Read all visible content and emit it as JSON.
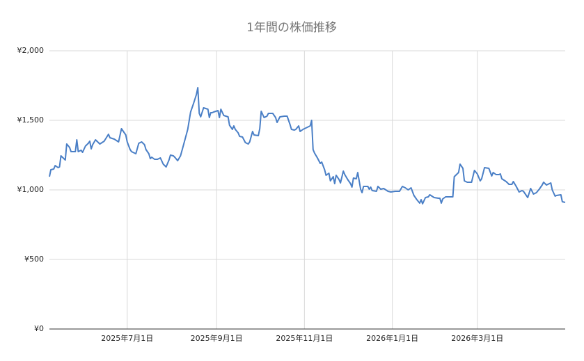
{
  "chart_data": {
    "type": "line",
    "title": "1年間の株価推移",
    "x": [
      "2025-05-08",
      "2025-05-09",
      "2025-05-11",
      "2025-05-12",
      "2025-05-14",
      "2025-05-15",
      "2025-05-16",
      "2025-05-19",
      "2025-05-20",
      "2025-05-22",
      "2025-05-23",
      "2025-05-26",
      "2025-05-27",
      "2025-05-28",
      "2025-05-30",
      "2025-05-31",
      "2025-06-02",
      "2025-06-04",
      "2025-06-05",
      "2025-06-06",
      "2025-06-07",
      "2025-06-09",
      "2025-06-11",
      "2025-06-12",
      "2025-06-15",
      "2025-06-18",
      "2025-06-19",
      "2025-06-22",
      "2025-06-25",
      "2025-06-27",
      "2025-06-30",
      "2025-07-01",
      "2025-07-03",
      "2025-07-04",
      "2025-07-07",
      "2025-07-09",
      "2025-07-11",
      "2025-07-13",
      "2025-07-14",
      "2025-07-16",
      "2025-07-17",
      "2025-07-18",
      "2025-07-20",
      "2025-07-22",
      "2025-07-24",
      "2025-07-26",
      "2025-07-28",
      "2025-07-30",
      "2025-07-31",
      "2025-08-02",
      "2025-08-03",
      "2025-08-05",
      "2025-08-07",
      "2025-08-09",
      "2025-08-12",
      "2025-08-14",
      "2025-08-16",
      "2025-08-18",
      "2025-08-19",
      "2025-08-20",
      "2025-08-21",
      "2025-08-23",
      "2025-08-26",
      "2025-08-27",
      "2025-08-28",
      "2025-08-29",
      "2025-08-30",
      "2025-09-02",
      "2025-09-03",
      "2025-09-04",
      "2025-09-06",
      "2025-09-09",
      "2025-09-10",
      "2025-09-12",
      "2025-09-13",
      "2025-09-14",
      "2025-09-16",
      "2025-09-17",
      "2025-09-19",
      "2025-09-21",
      "2025-09-23",
      "2025-09-24",
      "2025-09-26",
      "2025-09-27",
      "2025-09-30",
      "2025-10-01",
      "2025-10-02",
      "2025-10-04",
      "2025-10-06",
      "2025-10-07",
      "2025-10-10",
      "2025-10-12",
      "2025-10-13",
      "2025-10-15",
      "2025-10-18",
      "2025-10-20",
      "2025-10-22",
      "2025-10-23",
      "2025-10-25",
      "2025-10-26",
      "2025-10-28",
      "2025-10-29",
      "2025-10-31",
      "2025-11-03",
      "2025-11-05",
      "2025-11-06",
      "2025-11-07",
      "2025-11-08",
      "2025-11-10",
      "2025-11-12",
      "2025-11-13",
      "2025-11-15",
      "2025-11-16",
      "2025-11-18",
      "2025-11-19",
      "2025-11-21",
      "2025-11-22",
      "2025-11-23",
      "2025-11-25",
      "2025-11-26",
      "2025-11-28",
      "2025-11-29",
      "2025-12-01",
      "2025-12-03",
      "2025-12-04",
      "2025-12-05",
      "2025-12-07",
      "2025-12-08",
      "2025-12-10",
      "2025-12-11",
      "2025-12-12",
      "2025-12-15",
      "2025-12-16",
      "2025-12-17",
      "2025-12-18",
      "2025-12-21",
      "2025-12-22",
      "2025-12-24",
      "2025-12-26",
      "2025-12-29",
      "2025-12-31",
      "2026-01-03",
      "2026-01-06",
      "2026-01-08",
      "2026-01-10",
      "2026-01-12",
      "2026-01-14",
      "2026-01-16",
      "2026-01-18",
      "2026-01-20",
      "2026-01-21",
      "2026-01-22",
      "2026-01-24",
      "2026-01-26",
      "2026-01-27",
      "2026-01-30",
      "2026-02-02",
      "2026-02-03",
      "2026-02-04",
      "2026-02-05",
      "2026-02-07",
      "2026-02-10",
      "2026-02-12",
      "2026-02-13",
      "2026-02-16",
      "2026-02-17",
      "2026-02-19",
      "2026-02-20",
      "2026-02-22",
      "2026-02-25",
      "2026-02-27",
      "2026-03-01",
      "2026-03-03",
      "2026-03-04",
      "2026-03-06",
      "2026-03-09",
      "2026-03-11",
      "2026-03-12",
      "2026-03-14",
      "2026-03-16",
      "2026-03-17",
      "2026-03-18",
      "2026-03-21",
      "2026-03-23",
      "2026-03-25",
      "2026-03-26",
      "2026-03-28",
      "2026-03-30",
      "2026-04-01",
      "2026-04-02",
      "2026-04-05",
      "2026-04-07",
      "2026-04-09",
      "2026-04-11",
      "2026-04-13",
      "2026-04-15",
      "2026-04-16",
      "2026-04-18",
      "2026-04-21",
      "2026-04-22",
      "2026-04-24",
      "2026-04-25",
      "2026-04-28",
      "2026-04-29",
      "2026-05-01"
    ],
    "series": [
      {
        "color": "#4a7fc6",
        "values": [
          1095,
          1145,
          1150,
          1175,
          1160,
          1165,
          1245,
          1215,
          1330,
          1305,
          1275,
          1275,
          1360,
          1275,
          1285,
          1270,
          1315,
          1335,
          1350,
          1295,
          1325,
          1360,
          1340,
          1330,
          1350,
          1400,
          1375,
          1365,
          1345,
          1440,
          1395,
          1345,
          1290,
          1275,
          1260,
          1335,
          1345,
          1325,
          1290,
          1260,
          1225,
          1235,
          1220,
          1220,
          1230,
          1185,
          1165,
          1215,
          1250,
          1245,
          1235,
          1210,
          1245,
          1320,
          1435,
          1560,
          1620,
          1685,
          1735,
          1550,
          1525,
          1590,
          1580,
          1520,
          1555,
          1555,
          1560,
          1570,
          1520,
          1580,
          1535,
          1525,
          1465,
          1435,
          1460,
          1435,
          1410,
          1385,
          1380,
          1340,
          1330,
          1345,
          1420,
          1395,
          1390,
          1440,
          1565,
          1520,
          1530,
          1550,
          1550,
          1520,
          1485,
          1525,
          1530,
          1530,
          1470,
          1435,
          1430,
          1435,
          1460,
          1420,
          1435,
          1450,
          1460,
          1500,
          1290,
          1265,
          1230,
          1190,
          1200,
          1145,
          1105,
          1120,
          1065,
          1095,
          1045,
          1105,
          1075,
          1050,
          1135,
          1110,
          1075,
          1045,
          1020,
          1085,
          1080,
          1125,
          1005,
          980,
          1025,
          1025,
          1005,
          1020,
          995,
          990,
          1025,
          1005,
          1010,
          990,
          985,
          990,
          990,
          1025,
          1015,
          1000,
          1015,
          960,
          930,
          905,
          930,
          900,
          945,
          950,
          965,
          945,
          940,
          940,
          905,
          935,
          950,
          950,
          950,
          1095,
          1125,
          1185,
          1155,
          1065,
          1055,
          1055,
          1140,
          1115,
          1065,
          1080,
          1160,
          1155,
          1100,
          1125,
          1110,
          1110,
          1115,
          1080,
          1060,
          1040,
          1040,
          1060,
          1025,
          985,
          995,
          990,
          945,
          1010,
          970,
          980,
          1005,
          1035,
          1055,
          1035,
          1050,
          1000,
          955,
          960,
          965,
          915,
          910
        ]
      }
    ],
    "xlim": [
      "2025-05-08",
      "2026-05-01"
    ],
    "xticks": [
      {
        "value": "2025-07-01",
        "label": "2025年7月1日"
      },
      {
        "value": "2025-09-01",
        "label": "2025年9月1日"
      },
      {
        "value": "2025-11-01",
        "label": "2025年11月1日"
      },
      {
        "value": "2026-01-01",
        "label": "2026年1月1日"
      },
      {
        "value": "2026-03-01",
        "label": "2026年3月1日"
      }
    ],
    "ylim": [
      0,
      2000
    ],
    "yticks": [
      {
        "value": 0,
        "label": "¥0"
      },
      {
        "value": 500,
        "label": "¥500"
      },
      {
        "value": 1000,
        "label": "¥1,000"
      },
      {
        "value": 1500,
        "label": "¥1,500"
      },
      {
        "value": 2000,
        "label": "¥2,000"
      }
    ],
    "grid": true
  }
}
